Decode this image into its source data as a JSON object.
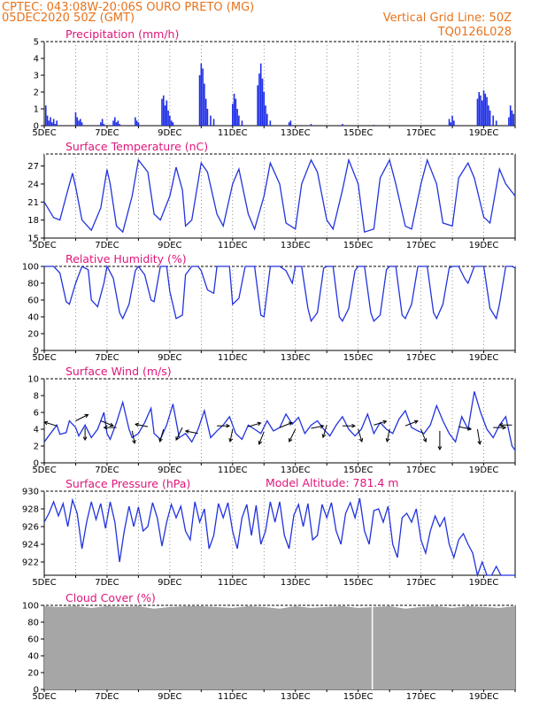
{
  "header": {
    "line1": "CPTEC:   043:08W-20:06S   OURO PRETO (MG)",
    "line2": "05DEC2020 50Z (GMT)",
    "grid_note": "Vertical Grid Line: 50Z",
    "code": "TQ0126L028"
  },
  "x_days": [
    "5DEC",
    "7DEC",
    "9DEC",
    "11DEC",
    "13DEC",
    "15DEC",
    "17DEC",
    "19DEC"
  ],
  "model_altitude": "Model Altitude: 781.4  m",
  "colors": {
    "series": "#2233dd",
    "bars": "#1f2fe6",
    "cloud": "#a6a6a6",
    "header": "#e8731c",
    "title": "#e0157a"
  },
  "chart_data": [
    {
      "type": "bar",
      "title": "Precipitation (mm/h)",
      "ylim": [
        0,
        5
      ],
      "yticks": [
        0,
        1,
        2,
        3,
        4,
        5
      ],
      "x_range": [
        0,
        15
      ],
      "x": [
        0.05,
        0.1,
        0.15,
        0.2,
        0.25,
        0.3,
        0.35,
        0.4,
        1.0,
        1.05,
        1.1,
        1.15,
        1.2,
        1.8,
        1.85,
        1.9,
        2.2,
        2.25,
        2.3,
        2.35,
        2.4,
        2.9,
        2.95,
        3.0,
        3.75,
        3.8,
        3.85,
        3.9,
        3.95,
        4.0,
        4.05,
        4.1,
        4.95,
        5.0,
        5.05,
        5.1,
        5.15,
        5.2,
        5.3,
        5.4,
        6.0,
        6.05,
        6.1,
        6.15,
        6.2,
        6.3,
        6.8,
        6.85,
        6.9,
        6.95,
        7.0,
        7.05,
        7.1,
        7.2,
        7.8,
        7.85,
        8.5,
        9.5,
        10.5,
        12.9,
        12.95,
        13.0,
        13.05,
        13.8,
        13.85,
        13.9,
        13.95,
        14.0,
        14.05,
        14.1,
        14.15,
        14.2,
        14.3,
        14.4,
        14.8,
        14.85,
        14.9,
        14.95
      ],
      "values": [
        1.2,
        0.6,
        0.3,
        0.5,
        0.2,
        0.4,
        0.1,
        0.3,
        0.8,
        0.5,
        0.3,
        0.4,
        0.2,
        0.2,
        0.4,
        0.1,
        0.3,
        0.5,
        0.2,
        0.3,
        0.1,
        0.5,
        0.3,
        0.2,
        1.6,
        1.8,
        1.2,
        1.5,
        0.9,
        0.6,
        0.3,
        0.2,
        3.0,
        3.7,
        3.4,
        2.5,
        1.6,
        1.0,
        0.6,
        0.4,
        1.3,
        1.9,
        1.6,
        1.0,
        0.6,
        0.3,
        2.4,
        3.1,
        3.7,
        2.8,
        2.0,
        1.2,
        0.7,
        0.3,
        0.2,
        0.3,
        0.1,
        0.1,
        0.05,
        0.4,
        0.2,
        0.6,
        0.3,
        1.6,
        2.0,
        1.8,
        1.5,
        2.1,
        1.9,
        1.7,
        1.2,
        0.9,
        0.6,
        0.3,
        0.5,
        1.2,
        0.9,
        0.7
      ]
    },
    {
      "type": "line",
      "title": "Surface Temperature (nC)",
      "ylim": [
        15,
        29
      ],
      "yticks": [
        15,
        18,
        21,
        24,
        27
      ],
      "x_range": [
        0,
        15
      ],
      "x": [
        0.0,
        0.3,
        0.5,
        0.7,
        0.9,
        1.0,
        1.2,
        1.5,
        1.8,
        2.0,
        2.1,
        2.3,
        2.5,
        2.8,
        3.0,
        3.3,
        3.5,
        3.7,
        4.0,
        4.2,
        4.4,
        4.5,
        4.7,
        5.0,
        5.2,
        5.5,
        5.7,
        6.0,
        6.2,
        6.5,
        6.7,
        7.0,
        7.2,
        7.5,
        7.7,
        8.0,
        8.2,
        8.5,
        8.7,
        9.0,
        9.2,
        9.5,
        9.7,
        10.0,
        10.2,
        10.5,
        10.7,
        11.0,
        11.2,
        11.5,
        11.7,
        12.0,
        12.2,
        12.5,
        12.7,
        13.0,
        13.2,
        13.5,
        13.7,
        14.0,
        14.2,
        14.5,
        14.7,
        15.0
      ],
      "values": [
        21.0,
        18.4,
        18.0,
        22.0,
        25.8,
        23.5,
        18.0,
        16.3,
        20.0,
        26.4,
        24.0,
        17.0,
        16.0,
        22.0,
        28.0,
        26.0,
        19.0,
        18.0,
        22.0,
        26.8,
        23.0,
        17.0,
        18.0,
        27.5,
        26.0,
        19.0,
        17.0,
        24.0,
        26.5,
        19.0,
        16.5,
        22.0,
        27.5,
        24.0,
        17.5,
        16.5,
        24.0,
        28.0,
        26.0,
        18.0,
        16.5,
        23.0,
        28.0,
        24.0,
        16.0,
        16.5,
        25.0,
        28.0,
        24.0,
        17.0,
        16.5,
        24.0,
        28.0,
        24.0,
        17.5,
        17.0,
        25.0,
        27.5,
        25.0,
        18.5,
        17.5,
        26.5,
        24.0,
        22.0
      ]
    },
    {
      "type": "line",
      "title": "Relative Humidity (%)",
      "ylim": [
        0,
        100
      ],
      "yticks": [
        0,
        20,
        40,
        60,
        80,
        100
      ],
      "x_range": [
        0,
        15
      ],
      "x": [
        0.0,
        0.3,
        0.5,
        0.7,
        0.8,
        1.0,
        1.2,
        1.4,
        1.5,
        1.7,
        1.9,
        2.0,
        2.2,
        2.4,
        2.5,
        2.7,
        2.9,
        3.0,
        3.2,
        3.4,
        3.5,
        3.7,
        3.9,
        4.0,
        4.2,
        4.4,
        4.5,
        4.7,
        4.9,
        5.0,
        5.2,
        5.4,
        5.5,
        5.7,
        5.9,
        6.0,
        6.2,
        6.4,
        6.5,
        6.7,
        6.9,
        7.0,
        7.2,
        7.4,
        7.5,
        7.7,
        7.9,
        8.0,
        8.2,
        8.4,
        8.5,
        8.7,
        8.9,
        9.0,
        9.2,
        9.4,
        9.5,
        9.7,
        9.9,
        10.0,
        10.2,
        10.4,
        10.5,
        10.7,
        10.9,
        11.0,
        11.2,
        11.4,
        11.5,
        11.7,
        11.9,
        12.0,
        12.2,
        12.4,
        12.5,
        12.7,
        12.9,
        13.0,
        13.2,
        13.4,
        13.5,
        13.7,
        13.9,
        14.0,
        14.2,
        14.4,
        14.5,
        14.7,
        14.9,
        15.0
      ],
      "values": [
        100,
        100,
        92,
        58,
        55,
        80,
        100,
        96,
        60,
        52,
        80,
        100,
        86,
        45,
        38,
        55,
        95,
        100,
        90,
        60,
        58,
        100,
        100,
        70,
        38,
        42,
        90,
        100,
        100,
        95,
        72,
        68,
        100,
        100,
        100,
        55,
        62,
        100,
        100,
        100,
        42,
        40,
        100,
        100,
        100,
        95,
        80,
        100,
        100,
        50,
        35,
        45,
        98,
        100,
        100,
        40,
        35,
        50,
        95,
        100,
        100,
        45,
        35,
        42,
        96,
        100,
        100,
        42,
        38,
        55,
        100,
        100,
        100,
        45,
        38,
        55,
        98,
        100,
        100,
        85,
        80,
        100,
        100,
        100,
        50,
        38,
        55,
        100,
        100,
        98
      ]
    },
    {
      "type": "line",
      "title": "Surface Wind (m/s)",
      "ylim": [
        0,
        10
      ],
      "yticks": [
        0,
        2,
        4,
        6,
        8,
        10
      ],
      "x_range": [
        0,
        15
      ],
      "x": [
        0.0,
        0.2,
        0.4,
        0.5,
        0.7,
        0.8,
        1.0,
        1.1,
        1.3,
        1.5,
        1.7,
        1.9,
        2.0,
        2.1,
        2.3,
        2.5,
        2.7,
        2.8,
        3.0,
        3.2,
        3.4,
        3.5,
        3.7,
        3.9,
        4.1,
        4.3,
        4.5,
        4.7,
        4.9,
        5.1,
        5.3,
        5.5,
        5.7,
        5.9,
        6.1,
        6.3,
        6.5,
        6.7,
        6.9,
        7.1,
        7.3,
        7.5,
        7.7,
        7.9,
        8.1,
        8.3,
        8.5,
        8.7,
        8.9,
        9.1,
        9.3,
        9.5,
        9.7,
        9.9,
        10.1,
        10.3,
        10.5,
        10.7,
        10.9,
        11.1,
        11.3,
        11.5,
        11.7,
        11.9,
        12.1,
        12.3,
        12.5,
        12.7,
        12.9,
        13.1,
        13.3,
        13.5,
        13.7,
        13.9,
        14.1,
        14.3,
        14.5,
        14.7,
        14.9,
        15.0
      ],
      "values": [
        2.5,
        3.5,
        4.5,
        3.4,
        3.6,
        5.0,
        4.2,
        3.2,
        4.5,
        3.0,
        4.0,
        6.0,
        3.5,
        2.8,
        4.8,
        7.2,
        4.0,
        3.0,
        3.5,
        4.8,
        6.5,
        3.5,
        2.8,
        4.5,
        7.0,
        3.0,
        3.5,
        2.5,
        4.0,
        6.2,
        3.0,
        3.8,
        4.5,
        5.5,
        3.5,
        2.8,
        4.5,
        4.0,
        3.5,
        5.0,
        3.8,
        4.2,
        5.8,
        4.6,
        5.4,
        3.5,
        4.5,
        5.0,
        4.0,
        3.2,
        4.5,
        5.5,
        4.0,
        3.2,
        4.0,
        5.8,
        3.5,
        4.8,
        4.0,
        3.5,
        5.2,
        6.2,
        4.2,
        3.8,
        3.5,
        4.5,
        6.8,
        5.0,
        3.5,
        2.5,
        5.5,
        4.0,
        8.5,
        6.0,
        4.0,
        3.0,
        4.5,
        5.5,
        2.0,
        1.5
      ]
    },
    {
      "type": "line",
      "title": "Surface Pressure (hPa)",
      "ylim": [
        920.5,
        930
      ],
      "yticks": [
        922,
        924,
        926,
        928,
        930
      ],
      "x_range": [
        0,
        15
      ],
      "x": [
        0.0,
        0.15,
        0.3,
        0.45,
        0.6,
        0.75,
        0.9,
        1.05,
        1.2,
        1.35,
        1.5,
        1.65,
        1.8,
        1.95,
        2.1,
        2.25,
        2.4,
        2.55,
        2.7,
        2.85,
        3.0,
        3.15,
        3.3,
        3.45,
        3.6,
        3.75,
        3.9,
        4.05,
        4.2,
        4.35,
        4.5,
        4.65,
        4.8,
        4.95,
        5.1,
        5.25,
        5.4,
        5.55,
        5.7,
        5.85,
        6.0,
        6.15,
        6.3,
        6.45,
        6.6,
        6.75,
        6.9,
        7.05,
        7.2,
        7.35,
        7.5,
        7.65,
        7.8,
        7.95,
        8.1,
        8.25,
        8.4,
        8.55,
        8.7,
        8.85,
        9.0,
        9.15,
        9.3,
        9.45,
        9.6,
        9.75,
        9.9,
        10.05,
        10.2,
        10.35,
        10.5,
        10.65,
        10.8,
        10.95,
        11.1,
        11.25,
        11.4,
        11.55,
        11.7,
        11.85,
        12.0,
        12.15,
        12.3,
        12.45,
        12.6,
        12.75,
        12.9,
        13.05,
        13.2,
        13.35,
        13.5,
        13.65,
        13.8,
        13.95,
        14.1,
        14.25,
        14.4,
        14.55,
        14.7,
        14.85,
        15.0
      ],
      "values": [
        926.5,
        927.5,
        928.8,
        927.2,
        928.6,
        926.0,
        929.0,
        927.5,
        923.5,
        926.5,
        928.8,
        926.8,
        928.6,
        925.8,
        928.8,
        926.5,
        922.0,
        925.5,
        928.3,
        926.0,
        928.2,
        925.5,
        926.0,
        928.7,
        927.0,
        923.8,
        926.5,
        928.5,
        927.0,
        928.3,
        925.5,
        924.5,
        928.8,
        926.5,
        928.0,
        923.5,
        925.0,
        928.6,
        927.0,
        928.7,
        925.5,
        923.5,
        927.0,
        928.5,
        925.0,
        928.4,
        924.0,
        925.5,
        928.8,
        926.5,
        928.8,
        925.0,
        923.5,
        927.3,
        928.5,
        926.0,
        928.6,
        924.5,
        925.0,
        928.5,
        927.0,
        928.7,
        925.5,
        924.0,
        927.5,
        928.7,
        927.0,
        929.2,
        925.5,
        924.0,
        927.8,
        928.0,
        926.5,
        928.3,
        924.0,
        922.5,
        927.0,
        927.5,
        926.5,
        928.0,
        924.5,
        923.0,
        925.5,
        927.2,
        926.0,
        927.0,
        924.0,
        922.5,
        924.5,
        925.2,
        924.0,
        923.0,
        920.5,
        922.0,
        920.5,
        920.5,
        921.5,
        920.5,
        920.5,
        920.5,
        920.5
      ]
    },
    {
      "type": "area",
      "title": "Cloud Cover (%)",
      "ylim": [
        0,
        100
      ],
      "yticks": [
        0,
        20,
        40,
        60,
        80,
        100
      ],
      "x_range": [
        0,
        15
      ],
      "x": [
        0,
        0.5,
        1,
        1.5,
        2,
        2.5,
        3,
        3.5,
        4,
        4.5,
        5,
        5.5,
        6,
        6.5,
        7,
        7.5,
        8,
        8.5,
        9,
        9.5,
        10,
        10.5,
        11,
        11.5,
        12,
        12.5,
        13,
        13.5,
        14,
        14.5,
        15
      ],
      "values": [
        99,
        98,
        99,
        97,
        99,
        98,
        99,
        96,
        98,
        99,
        99,
        98,
        97,
        99,
        98,
        96,
        99,
        97,
        98,
        99,
        97,
        98,
        99,
        96,
        98,
        99,
        97,
        99,
        98,
        97,
        99
      ]
    }
  ]
}
